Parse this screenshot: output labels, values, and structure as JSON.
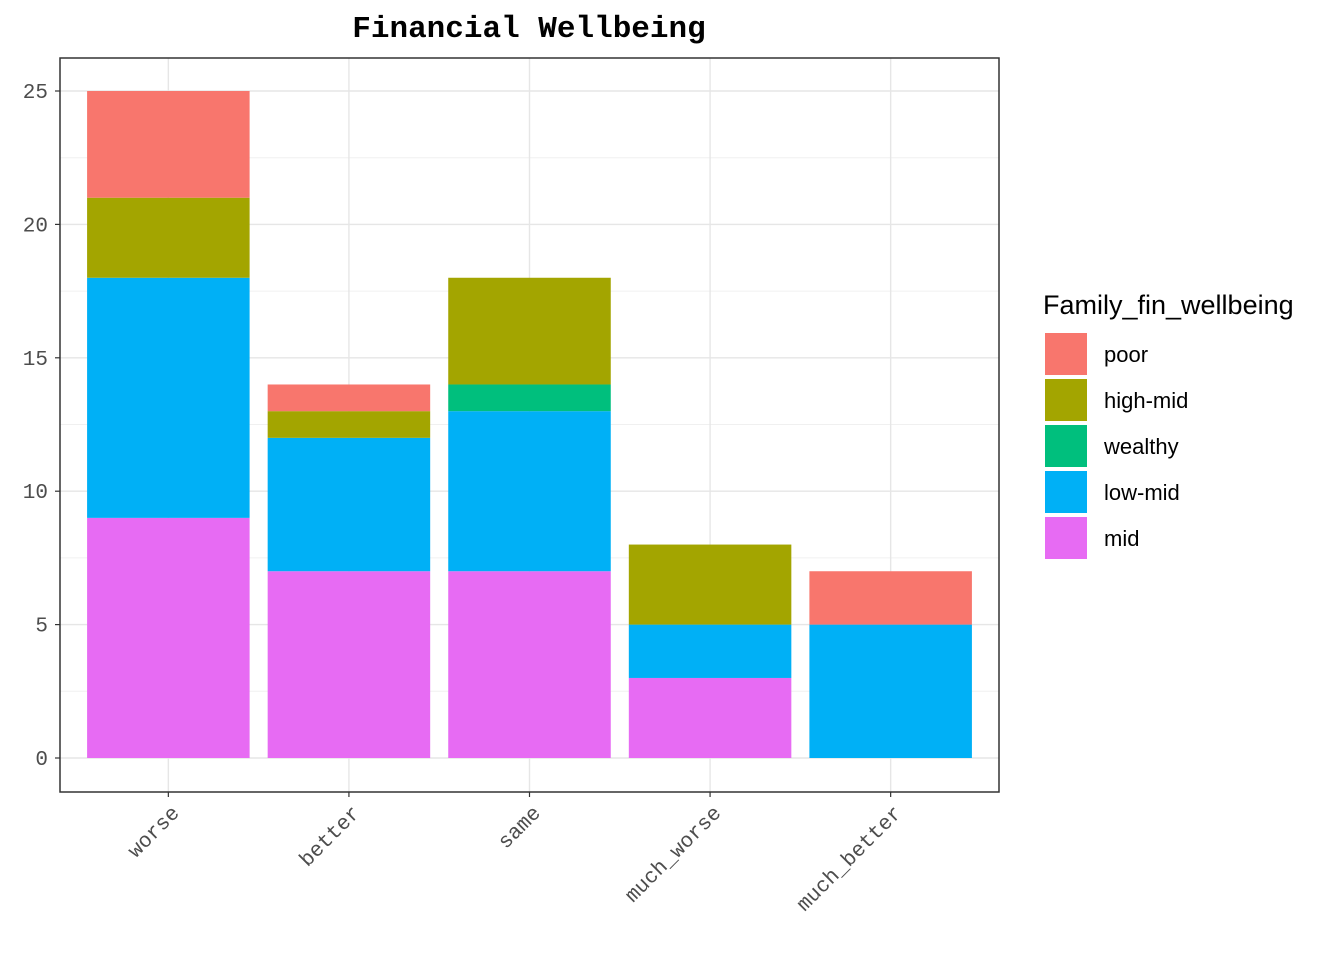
{
  "chart_data": {
    "type": "bar",
    "stacked": true,
    "title": "Financial Wellbeing",
    "xlabel": "",
    "ylabel": "",
    "categories": [
      "worse",
      "better",
      "same",
      "much_worse",
      "much_better"
    ],
    "series": [
      {
        "name": "mid",
        "color": "#E76BF3",
        "values": [
          9,
          7,
          7,
          3,
          0
        ]
      },
      {
        "name": "low-mid",
        "color": "#00B0F6",
        "values": [
          9,
          5,
          6,
          2,
          5
        ]
      },
      {
        "name": "wealthy",
        "color": "#00BF7D",
        "values": [
          0,
          0,
          1,
          0,
          0
        ]
      },
      {
        "name": "high-mid",
        "color": "#A3A500",
        "values": [
          3,
          1,
          4,
          3,
          0
        ]
      },
      {
        "name": "poor",
        "color": "#F8766D",
        "values": [
          4,
          1,
          0,
          0,
          2
        ]
      }
    ],
    "ylim": [
      0,
      25
    ],
    "yticks": [
      "0",
      "5",
      "10",
      "15",
      "20",
      "25"
    ],
    "grid": true,
    "legend": {
      "title": "Family_fin_wellbeing",
      "position": "right",
      "order": [
        "poor",
        "high-mid",
        "wealthy",
        "low-mid",
        "mid"
      ]
    }
  }
}
